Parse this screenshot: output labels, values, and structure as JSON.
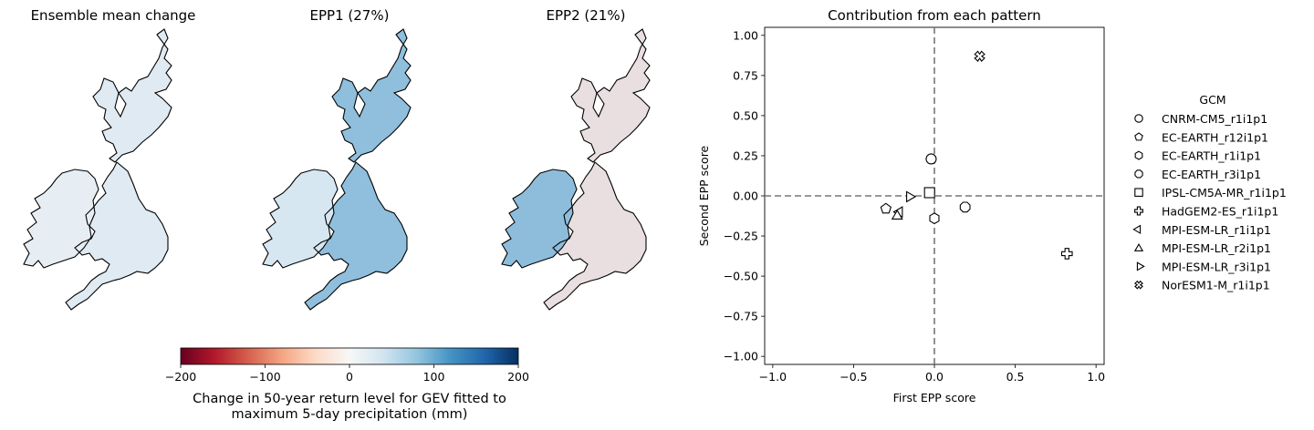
{
  "maps": [
    {
      "title": "Ensemble mean change",
      "pattern": "mean"
    },
    {
      "title": "EPP1 (27%)",
      "pattern": "epp1"
    },
    {
      "title": "EPP2 (21%)",
      "pattern": "epp2"
    }
  ],
  "colorbar": {
    "label_line1": "Change in 50-year return level for GEV fitted to",
    "label_line2": "maximum 5-day precipitation (mm)",
    "ticks": [
      "−200",
      "−100",
      "0",
      "100",
      "200"
    ],
    "tick_values": [
      -200,
      -100,
      0,
      100,
      200
    ],
    "range": [
      -200,
      200
    ],
    "colormap": "RdBu"
  },
  "chart_data": {
    "type": "scatter",
    "title": "Contribution from each pattern",
    "xlabel": "First EPP score",
    "ylabel": "Second EPP score",
    "xlim": [
      -1.05,
      1.05
    ],
    "ylim": [
      -1.05,
      1.05
    ],
    "xticks": [
      -1.0,
      -0.5,
      0.0,
      0.5,
      1.0
    ],
    "xtick_labels": [
      "−1.0",
      "−0.5",
      "0.0",
      "0.5",
      "1.0"
    ],
    "yticks": [
      -1.0,
      -0.75,
      -0.5,
      -0.25,
      0.0,
      0.25,
      0.5,
      0.75,
      1.0
    ],
    "ytick_labels": [
      "−1.00",
      "−0.75",
      "−0.50",
      "−0.25",
      "0.00",
      "0.25",
      "0.50",
      "0.75",
      "1.00"
    ],
    "zero_lines": true,
    "grid": false,
    "legend_title": "GCM",
    "legend_position": "right",
    "series": [
      {
        "name": "CNRM-CM5_r1i1p1",
        "marker": "circle",
        "x": -0.02,
        "y": 0.23
      },
      {
        "name": "EC-EARTH_r12i1p1",
        "marker": "pentagon",
        "x": -0.3,
        "y": -0.08
      },
      {
        "name": "EC-EARTH_r1i1p1",
        "marker": "hexagon",
        "x": 0.0,
        "y": -0.14
      },
      {
        "name": "EC-EARTH_r3i1p1",
        "marker": "octagon",
        "x": 0.19,
        "y": -0.07
      },
      {
        "name": "IPSL-CM5A-MR_r1i1p1",
        "marker": "square",
        "x": -0.03,
        "y": 0.02
      },
      {
        "name": "HadGEM2-ES_r1i1p1",
        "marker": "plus",
        "x": 0.82,
        "y": -0.36
      },
      {
        "name": "MPI-ESM-LR_r1i1p1",
        "marker": "triangle-left",
        "x": -0.21,
        "y": -0.1
      },
      {
        "name": "MPI-ESM-LR_r2i1p1",
        "marker": "triangle-up",
        "x": -0.23,
        "y": -0.12
      },
      {
        "name": "MPI-ESM-LR_r3i1p1",
        "marker": "triangle-right",
        "x": -0.16,
        "y": -0.005
      },
      {
        "name": "NorESM1-M_r1i1p1",
        "marker": "x-filled",
        "x": 0.28,
        "y": 0.87
      }
    ]
  }
}
